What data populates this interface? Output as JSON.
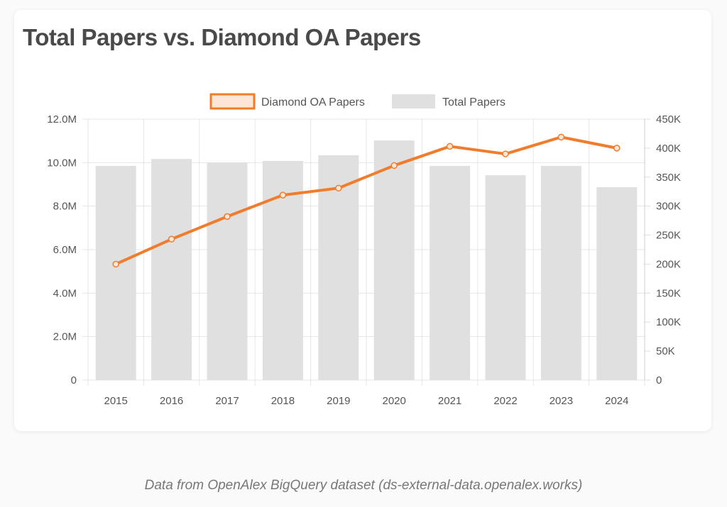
{
  "chart_data": {
    "type": "bar+line",
    "title": "Total Papers vs. Diamond OA Papers",
    "categories": [
      "2015",
      "2016",
      "2017",
      "2018",
      "2019",
      "2020",
      "2021",
      "2022",
      "2023",
      "2024"
    ],
    "series": [
      {
        "name": "Diamond OA Papers",
        "type": "line",
        "axis": "right",
        "color": "#f07c2c",
        "values": [
          200000,
          243000,
          282000,
          319000,
          331000,
          370000,
          403000,
          390000,
          419000,
          400000
        ]
      },
      {
        "name": "Total Papers",
        "type": "bar",
        "axis": "left",
        "color": "#e0e0e0",
        "values": [
          9850000,
          10170000,
          10000000,
          10080000,
          10340000,
          11020000,
          9850000,
          9420000,
          9850000,
          8870000
        ]
      }
    ],
    "left_axis": {
      "ylim": [
        0,
        12000000
      ],
      "ticks": [
        "0",
        "2.0M",
        "4.0M",
        "6.0M",
        "8.0M",
        "10.0M",
        "12.0M"
      ]
    },
    "right_axis": {
      "ylim": [
        0,
        450000
      ],
      "ticks": [
        "0",
        "50K",
        "100K",
        "150K",
        "200K",
        "250K",
        "300K",
        "350K",
        "400K",
        "450K"
      ]
    },
    "grid": true,
    "legend": "top"
  },
  "footer": "Data from OpenAlex BigQuery dataset (ds-external-data.openalex.works)"
}
